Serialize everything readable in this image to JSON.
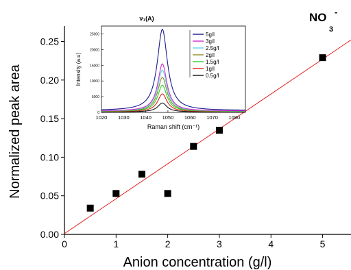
{
  "chart_data": [
    {
      "type": "scatter",
      "title": "",
      "annotation_main": "NO",
      "annotation_sup": "-",
      "annotation_sub": "3",
      "xlabel": "Anion concentration (g/l)",
      "ylabel": "Normalized peak area",
      "xlim": [
        0,
        5.55
      ],
      "ylim": [
        0,
        0.27
      ],
      "xticks": [
        "0",
        "1",
        "2",
        "3",
        "4",
        "5"
      ],
      "yticks": [
        "0.00",
        "0.05",
        "0.10",
        "0.15",
        "0.20",
        "0.25"
      ],
      "grid": false,
      "points": {
        "x": [
          0.5,
          1.0,
          1.5,
          2.0,
          2.5,
          3.0,
          5.0
        ],
        "y": [
          0.034,
          0.053,
          0.078,
          0.053,
          0.114,
          0.135,
          0.229
        ]
      },
      "fit_line": {
        "x": [
          0,
          5.55
        ],
        "y": [
          0.001,
          0.252
        ],
        "color": "#e02020"
      },
      "marker_color": "#000000"
    },
    {
      "type": "line",
      "title": "",
      "peak_label": "ν₁(A)",
      "xlabel": "Raman shift (cm⁻¹)",
      "ylabel": "Intensity (a.u)",
      "xlim": [
        1020,
        1085
      ],
      "ylim": [
        0,
        27500
      ],
      "xticks": [
        "1020",
        "1030",
        "1040",
        "1050",
        "1060",
        "1070",
        "1080"
      ],
      "yticks": [
        "0",
        "5000",
        "10000",
        "15000",
        "20000",
        "25000"
      ],
      "legend_position": "right",
      "peak_center": 1047.5,
      "series": [
        {
          "name": "5g/l",
          "peak": 26500,
          "width": 5.6,
          "baseline": 600,
          "color": "#1a1a8c"
        },
        {
          "name": "3g/l",
          "peak": 15500,
          "width": 5.0,
          "baseline": 450,
          "color": "#d02bd0"
        },
        {
          "name": "2.5g/l",
          "peak": 13500,
          "width": 5.0,
          "baseline": 400,
          "color": "#5fd8e8"
        },
        {
          "name": "2g/l",
          "peak": 11200,
          "width": 5.0,
          "baseline": 350,
          "color": "#8a8a20"
        },
        {
          "name": "1.5g/l",
          "peak": 8700,
          "width": 5.0,
          "baseline": 300,
          "color": "#2fd02f"
        },
        {
          "name": "1g/l",
          "peak": 5900,
          "width": 5.0,
          "baseline": 250,
          "color": "#e02020"
        },
        {
          "name": "0.5g/l",
          "peak": 3000,
          "width": 5.0,
          "baseline": 150,
          "color": "#111111"
        }
      ]
    }
  ]
}
